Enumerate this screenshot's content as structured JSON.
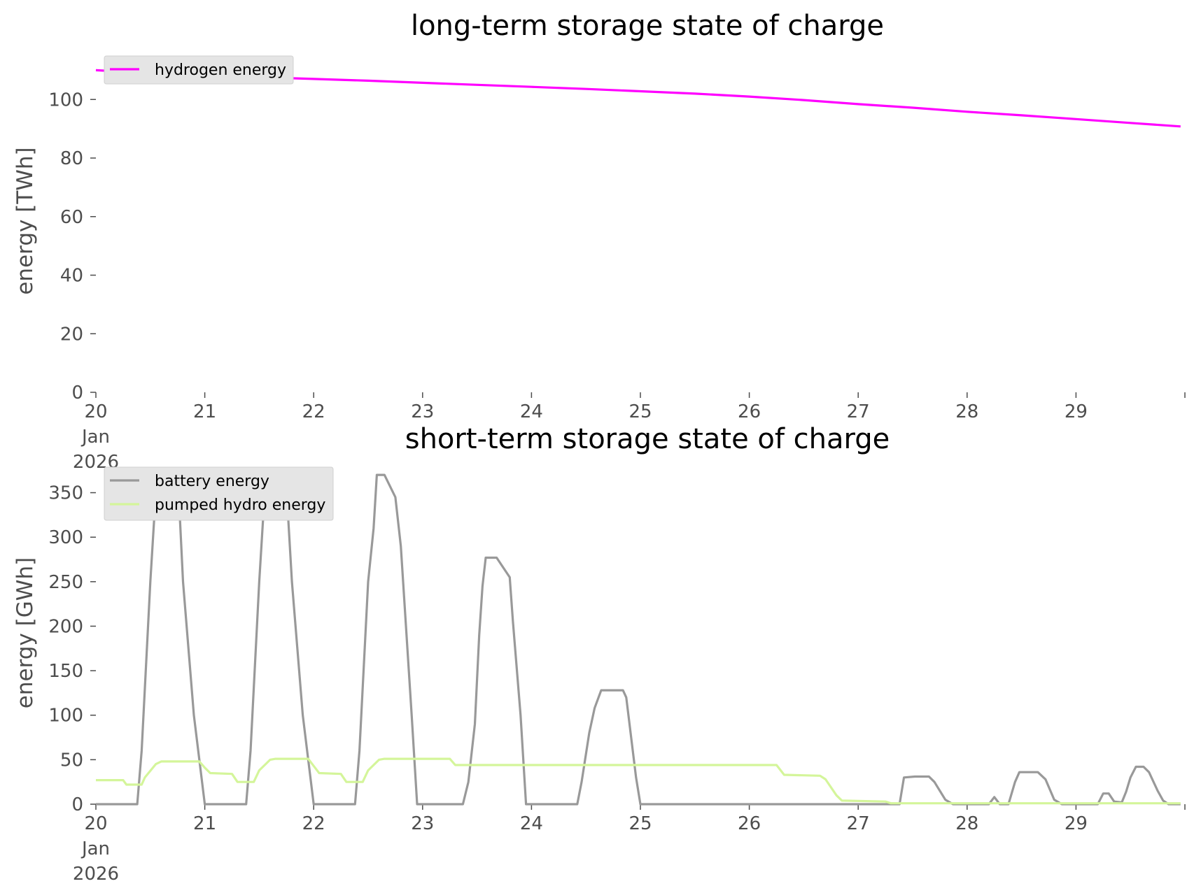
{
  "chart_data": [
    {
      "type": "line",
      "title": "long-term storage state of charge",
      "ylabel": "energy [TWh]",
      "xlabel": "",
      "x_unit": "days (Jan 2026)",
      "xlim": [
        20,
        30
      ],
      "ylim": [
        0,
        112
      ],
      "yticks": [
        0,
        20,
        40,
        60,
        80,
        100
      ],
      "ytick_labels": [
        "0",
        "20",
        "40",
        "60",
        "80",
        "100"
      ],
      "xticks": [
        20,
        21,
        22,
        23,
        24,
        25,
        26,
        27,
        28,
        29
      ],
      "xtick_labels": [
        "20",
        "21",
        "22",
        "23",
        "24",
        "25",
        "26",
        "27",
        "28",
        "29"
      ],
      "xtick_first_extra": [
        "Jan",
        "2026"
      ],
      "grid": false,
      "legend_position": "top-left",
      "series": [
        {
          "name": "hydrogen energy",
          "color": "#ff00ff",
          "x": [
            20.0,
            20.5,
            21.0,
            21.5,
            22.0,
            22.5,
            23.0,
            23.5,
            24.0,
            24.5,
            25.0,
            25.5,
            26.0,
            26.5,
            27.0,
            27.5,
            28.0,
            28.5,
            29.0,
            29.5,
            29.96
          ],
          "y": [
            110,
            109,
            108.3,
            107.6,
            107,
            106.4,
            105.7,
            105,
            104.3,
            103.6,
            102.8,
            102,
            101,
            99.8,
            98.4,
            97.2,
            95.8,
            94.6,
            93.3,
            92,
            90.8
          ]
        }
      ]
    },
    {
      "type": "line",
      "title": "short-term storage state of charge",
      "ylabel": "energy [GWh]",
      "xlabel": "",
      "x_unit": "days (Jan 2026)",
      "xlim": [
        20,
        30
      ],
      "ylim": [
        0,
        385
      ],
      "yticks": [
        0,
        50,
        100,
        150,
        200,
        250,
        300,
        350
      ],
      "ytick_labels": [
        "0",
        "50",
        "100",
        "150",
        "200",
        "250",
        "300",
        "350"
      ],
      "xticks": [
        20,
        21,
        22,
        23,
        24,
        25,
        26,
        27,
        28,
        29
      ],
      "xtick_labels": [
        "20",
        "21",
        "22",
        "23",
        "24",
        "25",
        "26",
        "27",
        "28",
        "29"
      ],
      "xtick_first_extra": [
        "Jan",
        "2026"
      ],
      "grid": false,
      "legend_position": "top-left",
      "series": [
        {
          "name": "battery energy",
          "color": "#999999",
          "x": [
            20.0,
            20.38,
            20.42,
            20.5,
            20.55,
            20.58,
            20.75,
            20.8,
            20.9,
            21.0,
            21.38,
            21.42,
            21.5,
            21.55,
            21.58,
            21.65,
            21.75,
            21.8,
            21.9,
            22.0,
            22.38,
            22.42,
            22.5,
            22.55,
            22.58,
            22.65,
            22.75,
            22.8,
            22.9,
            22.95,
            23.37,
            23.42,
            23.48,
            23.52,
            23.55,
            23.58,
            23.68,
            23.8,
            23.83,
            23.9,
            23.95,
            24.42,
            24.46,
            24.53,
            24.58,
            24.64,
            24.7,
            24.84,
            24.87,
            24.96,
            25.0,
            27.38,
            27.42,
            27.52,
            27.65,
            27.7,
            27.8,
            27.87,
            28.2,
            28.25,
            28.3,
            28.38,
            28.44,
            28.48,
            28.55,
            28.65,
            28.72,
            28.8,
            28.87,
            29.2,
            29.25,
            29.3,
            29.35,
            29.42,
            29.46,
            29.5,
            29.55,
            29.62,
            29.67,
            29.75,
            29.8,
            29.85,
            29.96
          ],
          "y": [
            0,
            0,
            60,
            250,
            350,
            375,
            375,
            250,
            100,
            0,
            0,
            60,
            250,
            350,
            375,
            375,
            355,
            250,
            100,
            0,
            0,
            60,
            250,
            310,
            370,
            370,
            345,
            290,
            100,
            0,
            0,
            25,
            90,
            190,
            245,
            277,
            277,
            255,
            205,
            100,
            0,
            0,
            25,
            80,
            108,
            128,
            128,
            128,
            120,
            30,
            0,
            0,
            30,
            31,
            31,
            25,
            5,
            0,
            0,
            8,
            0,
            0,
            25,
            36,
            36,
            36,
            28,
            5,
            0,
            0,
            12,
            12,
            3,
            2,
            14,
            30,
            42,
            42,
            36,
            15,
            4,
            0,
            0
          ]
        },
        {
          "name": "pumped hydro energy",
          "color": "#d4f59a",
          "x": [
            20.0,
            20.25,
            20.28,
            20.42,
            20.45,
            20.55,
            20.6,
            20.95,
            21.0,
            21.05,
            21.25,
            21.3,
            21.45,
            21.5,
            21.6,
            21.65,
            21.95,
            22.0,
            22.05,
            22.25,
            22.3,
            22.45,
            22.5,
            22.6,
            22.65,
            23.25,
            23.3,
            26.25,
            26.32,
            26.65,
            26.7,
            26.8,
            26.85,
            27.25,
            27.3,
            29.96
          ],
          "y": [
            27,
            27,
            22,
            22,
            30,
            45,
            48,
            48,
            41,
            35,
            34,
            25,
            25,
            38,
            50,
            51,
            51,
            43,
            35,
            34,
            25,
            25,
            38,
            50,
            51,
            51,
            44,
            44,
            33,
            32,
            28,
            10,
            4,
            3,
            1,
            1
          ]
        }
      ]
    }
  ]
}
